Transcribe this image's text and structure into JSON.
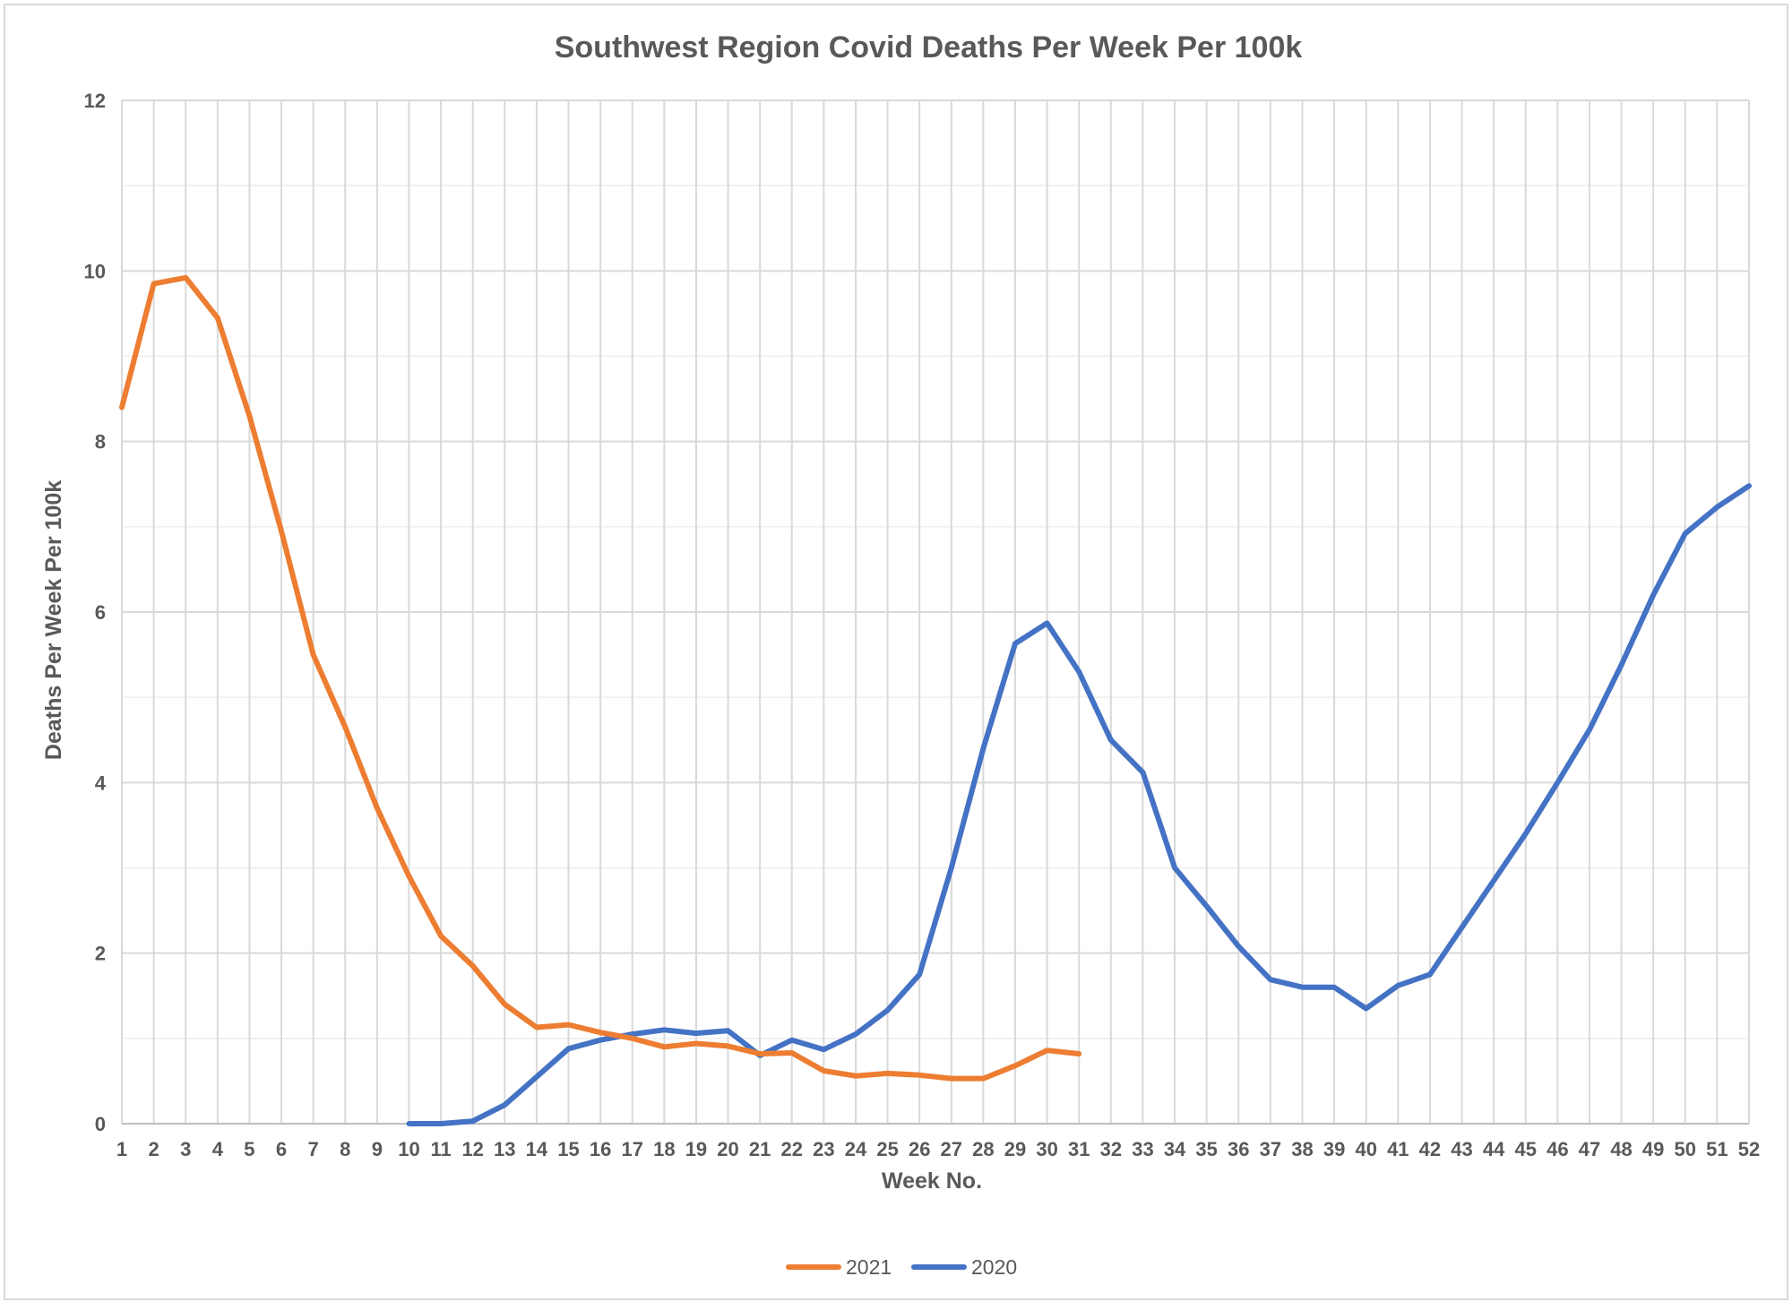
{
  "chart_data": {
    "type": "line",
    "title": "Southwest Region Covid Deaths Per Week Per 100k",
    "xlabel": "Week No.",
    "ylabel": "Deaths Per Week Per 100k",
    "xlim": [
      1,
      52
    ],
    "ylim": [
      0,
      12
    ],
    "yticks": [
      0,
      2,
      4,
      6,
      8,
      10,
      12
    ],
    "grid": true,
    "legend_position": "bottom",
    "series": [
      {
        "name": "2021",
        "color": "#ed7d31",
        "x": [
          1,
          2,
          3,
          4,
          5,
          6,
          7,
          8,
          9,
          10,
          11,
          12,
          13,
          14,
          15,
          16,
          17,
          18,
          19,
          20,
          21,
          22,
          23,
          24,
          25,
          26,
          27,
          28,
          29,
          30,
          31
        ],
        "y": [
          8.4,
          9.85,
          9.92,
          9.45,
          8.3,
          6.95,
          5.5,
          4.65,
          3.7,
          2.9,
          2.2,
          1.85,
          1.4,
          1.13,
          1.16,
          1.07,
          1.0,
          0.9,
          0.94,
          0.91,
          0.82,
          0.83,
          0.62,
          0.56,
          0.59,
          0.57,
          0.53,
          0.53,
          0.68,
          0.86,
          0.82
        ]
      },
      {
        "name": "2020",
        "color": "#4472c4",
        "x": [
          10,
          11,
          12,
          13,
          14,
          15,
          16,
          17,
          18,
          19,
          20,
          21,
          22,
          23,
          24,
          25,
          26,
          27,
          28,
          29,
          30,
          31,
          32,
          33,
          34,
          35,
          36,
          37,
          38,
          39,
          40,
          41,
          42,
          43,
          44,
          45,
          46,
          47,
          48,
          49,
          50,
          51,
          52
        ],
        "y": [
          0.0,
          0.0,
          0.03,
          0.22,
          0.55,
          0.88,
          0.98,
          1.05,
          1.1,
          1.06,
          1.09,
          0.8,
          0.98,
          0.87,
          1.05,
          1.33,
          1.75,
          3.0,
          4.4,
          5.63,
          5.87,
          5.3,
          4.5,
          4.12,
          3.0,
          2.55,
          2.08,
          1.69,
          1.6,
          1.6,
          1.35,
          1.62,
          1.75,
          2.3,
          2.85,
          3.4,
          4.0,
          4.62,
          5.38,
          6.2,
          6.92,
          7.23,
          7.48
        ]
      }
    ]
  }
}
